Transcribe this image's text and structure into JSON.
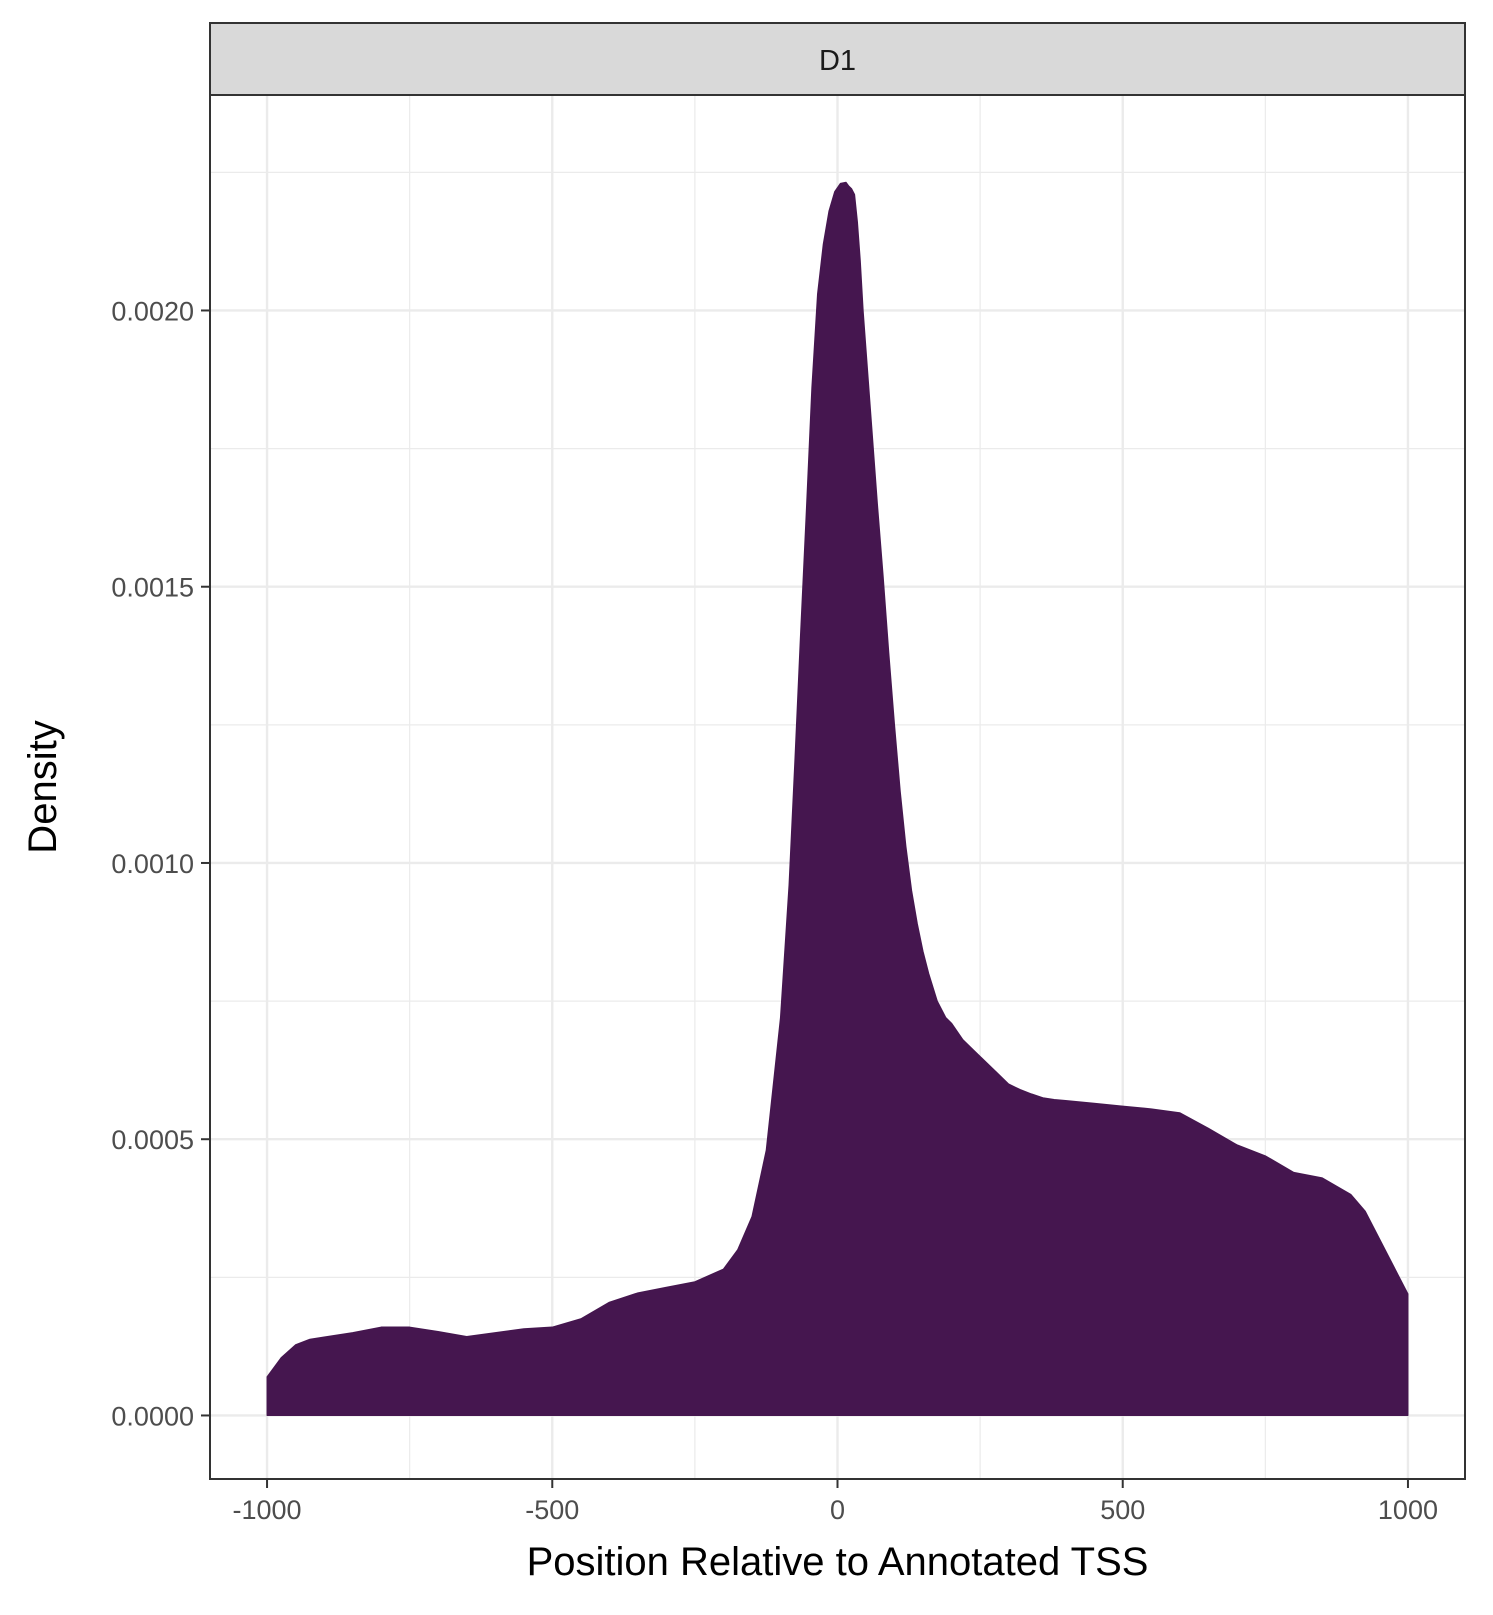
{
  "chart_data": {
    "type": "area",
    "facet_label": "D1",
    "title": "",
    "xlabel": "Position Relative to Annotated TSS",
    "ylabel": "Density",
    "xlim": [
      -1100,
      1100
    ],
    "ylim": [
      -0.000115,
      0.00239
    ],
    "x_ticks": [
      -1000,
      -500,
      0,
      500,
      1000
    ],
    "x_tick_labels": [
      "-1000",
      "-500",
      "0",
      "500",
      "1000"
    ],
    "y_ticks": [
      0,
      0.0005,
      0.001,
      0.0015,
      0.002
    ],
    "y_tick_labels": [
      "0.0000",
      "0.0005",
      "0.0010",
      "0.0015",
      "0.0020"
    ],
    "grid": true,
    "fill_color": "#45164f",
    "series": [
      {
        "x": [
          -1000,
          -975,
          -950,
          -925,
          -900,
          -850,
          -800,
          -750,
          -700,
          -650,
          -600,
          -550,
          -500,
          -450,
          -400,
          -350,
          -300,
          -250,
          -200,
          -175,
          -150,
          -125,
          -100,
          -85,
          -75,
          -65,
          -55,
          -45,
          -35,
          -25,
          -15,
          -5,
          5,
          15,
          20,
          25,
          30,
          35,
          40,
          45,
          50,
          60,
          70,
          80,
          90,
          100,
          110,
          120,
          130,
          140,
          150,
          160,
          175,
          190,
          200,
          220,
          240,
          260,
          280,
          300,
          320,
          340,
          360,
          380,
          400,
          450,
          500,
          550,
          600,
          650,
          700,
          750,
          800,
          850,
          900,
          925,
          950,
          975,
          1000
        ],
        "y": [
          7e-05,
          0.000105,
          0.000128,
          0.000138,
          0.000142,
          0.00015,
          0.00016,
          0.00016,
          0.000152,
          0.000143,
          0.00015,
          0.000157,
          0.00016,
          0.000175,
          0.000205,
          0.000222,
          0.000232,
          0.000242,
          0.000265,
          0.0003,
          0.00036,
          0.00048,
          0.00072,
          0.00096,
          0.00118,
          0.00141,
          0.00163,
          0.00186,
          0.00203,
          0.00212,
          0.00218,
          0.002215,
          0.00223,
          0.002232,
          0.002225,
          0.00222,
          0.00221,
          0.00216,
          0.00209,
          0.002,
          0.00193,
          0.00179,
          0.00165,
          0.00152,
          0.00138,
          0.00125,
          0.00113,
          0.00103,
          0.00095,
          0.00089,
          0.00084,
          0.0008,
          0.00075,
          0.00072,
          0.00071,
          0.00068,
          0.00066,
          0.00064,
          0.00062,
          0.0006,
          0.00059,
          0.000582,
          0.000575,
          0.000572,
          0.00057,
          0.000565,
          0.00056,
          0.000555,
          0.000548,
          0.00052,
          0.00049,
          0.00047,
          0.00044,
          0.00043,
          0.0004,
          0.00037,
          0.00032,
          0.00027,
          0.00022
        ]
      }
    ]
  }
}
